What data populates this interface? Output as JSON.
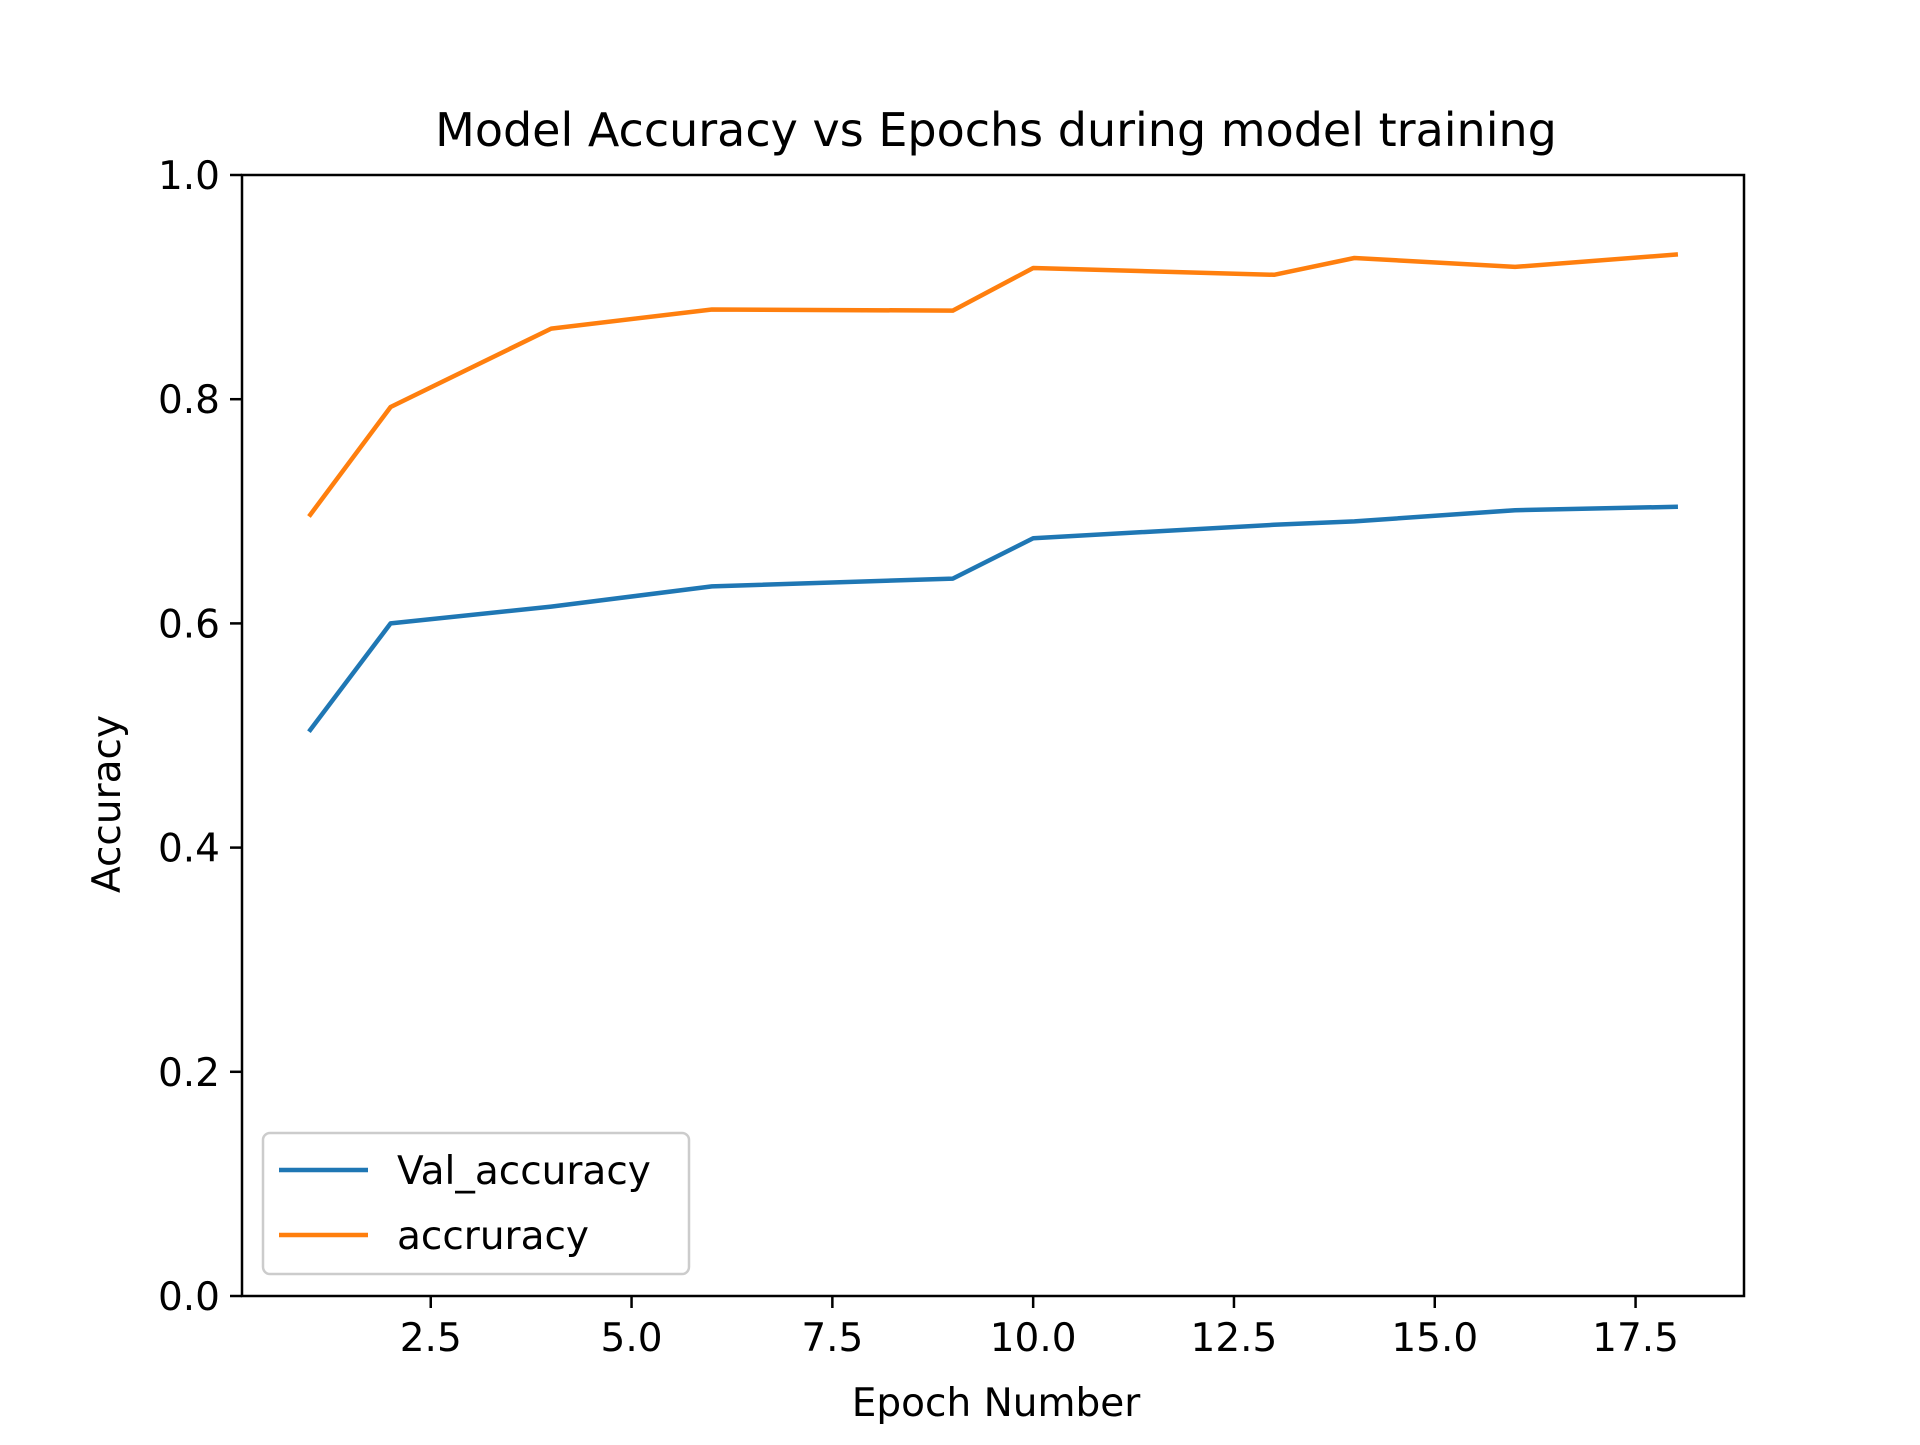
{
  "chart_data": {
    "type": "line",
    "title": "Model Accuracy vs Epochs during model training",
    "xlabel": "Epoch Number",
    "ylabel": "Accuracy",
    "xlim": [
      0.15,
      18.85
    ],
    "ylim": [
      0.0,
      1.0
    ],
    "x_ticks": [
      2.5,
      5.0,
      7.5,
      10.0,
      12.5,
      15.0,
      17.5
    ],
    "x_tick_labels": [
      "2.5",
      "5.0",
      "7.5",
      "10.0",
      "12.5",
      "15.0",
      "17.5"
    ],
    "y_ticks": [
      0.0,
      0.2,
      0.4,
      0.6,
      0.8,
      1.0
    ],
    "y_tick_labels": [
      "0.0",
      "0.2",
      "0.4",
      "0.6",
      "0.8",
      "1.0"
    ],
    "grid": false,
    "legend_position": "lower-left",
    "series": [
      {
        "name": "Val_accuracy",
        "color": "#1f77b4",
        "x": [
          1,
          2,
          4,
          6,
          9,
          10,
          13,
          14,
          16,
          18
        ],
        "y": [
          0.505,
          0.6,
          0.615,
          0.633,
          0.64,
          0.676,
          0.688,
          0.691,
          0.701,
          0.704
        ]
      },
      {
        "name": "accruracy",
        "color": "#ff7f0e",
        "x": [
          1,
          2,
          4,
          6,
          9,
          10,
          13,
          14,
          16,
          18
        ],
        "y": [
          0.697,
          0.793,
          0.863,
          0.88,
          0.879,
          0.917,
          0.911,
          0.926,
          0.918,
          0.929
        ]
      }
    ]
  }
}
